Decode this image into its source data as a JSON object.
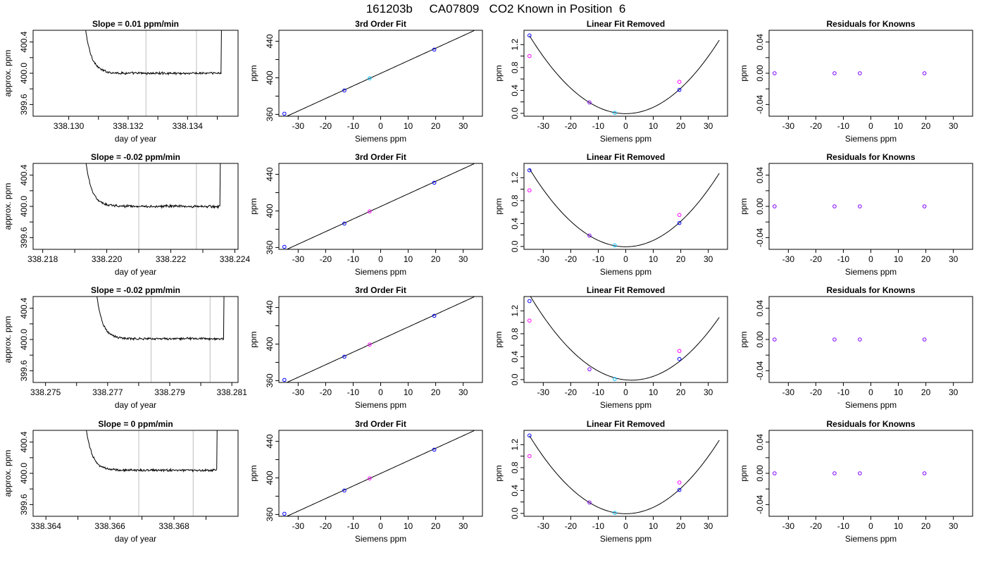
{
  "figure": {
    "title": "161203b     CA07809   CO2 Known in Position  6"
  },
  "colors": {
    "axis": "#000000",
    "trace": "#000000",
    "window_line": "#c8c8c8",
    "point_blue": "#0000ff",
    "point_magenta": "#ff00ff",
    "point_cyan": "#00bfff",
    "point_purple": "#8000ff"
  },
  "chart_data": [
    {
      "panel": "trace",
      "row": 1,
      "type": "line",
      "title": "Slope =  0.01  ppm/min",
      "xlabel": "day of year",
      "ylabel": "approx. ppm",
      "xlim": [
        338.1288,
        338.1357
      ],
      "ylim": [
        399.45,
        400.55
      ],
      "xticks": [
        338.13,
        338.131,
        338.132,
        338.133,
        338.134,
        338.135
      ],
      "xtick_labels": [
        "338.130",
        "",
        "338.132",
        "",
        "338.134",
        ""
      ],
      "yticks": [
        399.6,
        399.8,
        400.0,
        400.2,
        400.4
      ],
      "ytick_labels": [
        "399.6",
        "",
        "400.0",
        "",
        "400.4"
      ],
      "vlines": [
        338.1326,
        338.1343
      ],
      "trace": {
        "x_start": 338.1304,
        "x_end": 338.1352,
        "plateau": 400.0,
        "noise": 0.012,
        "slope": 0.01
      }
    },
    {
      "panel": "fit",
      "row": 1,
      "type": "line",
      "title": "3rd Order Fit",
      "xlabel": "Siemens ppm",
      "ylabel": "ppm",
      "xlim": [
        -37,
        37
      ],
      "ylim": [
        358,
        452
      ],
      "xticks": [
        -30,
        -20,
        -10,
        0,
        10,
        20,
        30
      ],
      "xtick_labels": [
        "-30",
        "-20",
        "-10",
        "0",
        "10",
        "20",
        "30"
      ],
      "yticks": [
        360,
        380,
        400,
        420,
        440
      ],
      "ytick_labels": [
        "360",
        "",
        "400",
        "",
        "440"
      ],
      "curve": {
        "slope": 1.375,
        "intercept": 404.9,
        "x_from": -35,
        "x_to": 34
      },
      "points": [
        {
          "x": -35,
          "y": 360.8,
          "color": "blue"
        },
        {
          "x": -13.2,
          "y": 386.2,
          "color": "blue"
        },
        {
          "x": -4,
          "y": 399.5,
          "color": "cyan"
        },
        {
          "x": 19.5,
          "y": 430.9,
          "color": "blue"
        }
      ]
    },
    {
      "panel": "removed",
      "row": 1,
      "type": "line",
      "title": "Linear Fit Removed",
      "xlabel": "Siemens ppm",
      "ylabel": "ppm",
      "xlim": [
        -37,
        37
      ],
      "ylim": [
        -0.05,
        1.45
      ],
      "xticks": [
        -30,
        -20,
        -10,
        0,
        10,
        20,
        30
      ],
      "xtick_labels": [
        "-30",
        "-20",
        "-10",
        "0",
        "10",
        "20",
        "30"
      ],
      "yticks": [
        0.0,
        0.2,
        0.4,
        0.6,
        0.8,
        1.0,
        1.2
      ],
      "ytick_labels": [
        "0.0",
        "",
        "0.4",
        "",
        "0.8",
        "",
        "1.2"
      ],
      "curve": {
        "a": 0.00111,
        "b": 0,
        "c": -0.005,
        "x_from": -35,
        "x_to": 34
      },
      "points": [
        {
          "x": -35,
          "y": 1.36,
          "color": "blue"
        },
        {
          "x": -35,
          "y": 1.0,
          "color": "magenta"
        },
        {
          "x": -13.2,
          "y": 0.19,
          "color": "purple"
        },
        {
          "x": -4,
          "y": 0.01,
          "color": "cyan"
        },
        {
          "x": 19.5,
          "y": 0.41,
          "color": "blue"
        },
        {
          "x": 19.5,
          "y": 0.55,
          "color": "magenta"
        }
      ]
    },
    {
      "panel": "residuals",
      "row": 1,
      "type": "scatter",
      "title": "Residuals for Knowns",
      "xlabel": "Siemens ppm",
      "ylabel": "ppm",
      "xlim": [
        -37,
        37
      ],
      "ylim": [
        -0.055,
        0.055
      ],
      "xticks": [
        -30,
        -20,
        -10,
        0,
        10,
        20,
        30
      ],
      "xtick_labels": [
        "-30",
        "-20",
        "-10",
        "0",
        "10",
        "20",
        "30"
      ],
      "yticks": [
        -0.04,
        -0.02,
        0.0,
        0.02,
        0.04
      ],
      "ytick_labels": [
        "-0.04",
        "",
        "0.00",
        "",
        "0.04"
      ],
      "points": [
        {
          "x": -35,
          "y": 0,
          "color": "purple"
        },
        {
          "x": -13.2,
          "y": 0,
          "color": "purple"
        },
        {
          "x": -4,
          "y": 0,
          "color": "purple"
        },
        {
          "x": 19.5,
          "y": 0,
          "color": "purple"
        }
      ]
    },
    {
      "panel": "trace",
      "row": 2,
      "type": "line",
      "title": "Slope =  -0.02  ppm/min",
      "xlabel": "day of year",
      "ylabel": "approx. ppm",
      "xlim": [
        338.2177,
        338.2241
      ],
      "ylim": [
        399.45,
        400.55
      ],
      "xticks": [
        338.218,
        338.219,
        338.22,
        338.221,
        338.222,
        338.223,
        338.224
      ],
      "xtick_labels": [
        "338.218",
        "",
        "338.220",
        "",
        "338.222",
        "",
        "338.224"
      ],
      "yticks": [
        399.6,
        399.8,
        400.0,
        400.2,
        400.4
      ],
      "ytick_labels": [
        "399.6",
        "",
        "400.0",
        "",
        "400.4"
      ],
      "vlines": [
        338.221,
        338.2228
      ],
      "trace": {
        "x_start": 338.2192,
        "x_end": 338.2236,
        "plateau": 400.0,
        "noise": 0.013,
        "slope": -0.02
      }
    },
    {
      "panel": "fit",
      "row": 2,
      "type": "line",
      "title": "3rd Order Fit",
      "xlabel": "Siemens ppm",
      "ylabel": "ppm",
      "xlim": [
        -37,
        37
      ],
      "ylim": [
        358,
        452
      ],
      "xticks": [
        -30,
        -20,
        -10,
        0,
        10,
        20,
        30
      ],
      "xtick_labels": [
        "-30",
        "-20",
        "-10",
        "0",
        "10",
        "20",
        "30"
      ],
      "yticks": [
        360,
        380,
        400,
        420,
        440
      ],
      "ytick_labels": [
        "360",
        "",
        "400",
        "",
        "440"
      ],
      "curve": {
        "slope": 1.375,
        "intercept": 404.9,
        "x_from": -35,
        "x_to": 34
      },
      "points": [
        {
          "x": -35,
          "y": 360.8,
          "color": "blue"
        },
        {
          "x": -13.2,
          "y": 386.2,
          "color": "blue"
        },
        {
          "x": -4,
          "y": 399.5,
          "color": "magenta"
        },
        {
          "x": 19.5,
          "y": 430.9,
          "color": "blue"
        }
      ]
    },
    {
      "panel": "removed",
      "row": 2,
      "type": "line",
      "title": "Linear Fit Removed",
      "xlabel": "Siemens ppm",
      "ylabel": "ppm",
      "xlim": [
        -37,
        37
      ],
      "ylim": [
        -0.05,
        1.45
      ],
      "xticks": [
        -30,
        -20,
        -10,
        0,
        10,
        20,
        30
      ],
      "xtick_labels": [
        "-30",
        "-20",
        "-10",
        "0",
        "10",
        "20",
        "30"
      ],
      "yticks": [
        0.0,
        0.2,
        0.4,
        0.6,
        0.8,
        1.0,
        1.2
      ],
      "ytick_labels": [
        "0.0",
        "",
        "0.4",
        "",
        "0.8",
        "",
        "1.2"
      ],
      "curve": {
        "a": 0.00111,
        "b": 0,
        "c": -0.005,
        "x_from": -35,
        "x_to": 34
      },
      "points": [
        {
          "x": -35,
          "y": 1.33,
          "color": "blue"
        },
        {
          "x": -35,
          "y": 0.98,
          "color": "magenta"
        },
        {
          "x": -13.2,
          "y": 0.19,
          "color": "purple"
        },
        {
          "x": -4,
          "y": 0.02,
          "color": "cyan"
        },
        {
          "x": 19.5,
          "y": 0.41,
          "color": "blue"
        },
        {
          "x": 19.5,
          "y": 0.55,
          "color": "magenta"
        }
      ]
    },
    {
      "panel": "residuals",
      "row": 2,
      "type": "scatter",
      "title": "Residuals for Knowns",
      "xlabel": "Siemens ppm",
      "ylabel": "ppm",
      "xlim": [
        -37,
        37
      ],
      "ylim": [
        -0.055,
        0.055
      ],
      "xticks": [
        -30,
        -20,
        -10,
        0,
        10,
        20,
        30
      ],
      "xtick_labels": [
        "-30",
        "-20",
        "-10",
        "0",
        "10",
        "20",
        "30"
      ],
      "yticks": [
        -0.04,
        -0.02,
        0.0,
        0.02,
        0.04
      ],
      "ytick_labels": [
        "-0.04",
        "",
        "0.00",
        "",
        "0.04"
      ],
      "points": [
        {
          "x": -35,
          "y": 0,
          "color": "purple"
        },
        {
          "x": -13.2,
          "y": 0,
          "color": "purple"
        },
        {
          "x": -4,
          "y": 0,
          "color": "purple"
        },
        {
          "x": 19.5,
          "y": 0,
          "color": "purple"
        }
      ]
    },
    {
      "panel": "trace",
      "row": 3,
      "type": "line",
      "title": "Slope =  -0.02  ppm/min",
      "xlabel": "day of year",
      "ylabel": "approx. ppm",
      "xlim": [
        338.2746,
        338.2812
      ],
      "ylim": [
        399.45,
        400.55
      ],
      "xticks": [
        338.275,
        338.276,
        338.277,
        338.278,
        338.279,
        338.28,
        338.281
      ],
      "xtick_labels": [
        "338.275",
        "",
        "338.277",
        "",
        "338.279",
        "",
        "338.281"
      ],
      "yticks": [
        399.6,
        399.8,
        400.0,
        400.2,
        400.4
      ],
      "ytick_labels": [
        "399.6",
        "",
        "400.0",
        "",
        "400.4"
      ],
      "vlines": [
        338.2784,
        338.2803
      ],
      "trace": {
        "x_start": 338.2765,
        "x_end": 338.2808,
        "plateau": 400.01,
        "noise": 0.012,
        "slope": -0.02
      }
    },
    {
      "panel": "fit",
      "row": 3,
      "type": "line",
      "title": "3rd Order Fit",
      "xlabel": "Siemens ppm",
      "ylabel": "ppm",
      "xlim": [
        -37,
        37
      ],
      "ylim": [
        358,
        452
      ],
      "xticks": [
        -30,
        -20,
        -10,
        0,
        10,
        20,
        30
      ],
      "xtick_labels": [
        "-30",
        "-20",
        "-10",
        "0",
        "10",
        "20",
        "30"
      ],
      "yticks": [
        360,
        380,
        400,
        420,
        440
      ],
      "ytick_labels": [
        "360",
        "",
        "400",
        "",
        "440"
      ],
      "curve": {
        "slope": 1.375,
        "intercept": 404.9,
        "x_from": -35,
        "x_to": 34
      },
      "points": [
        {
          "x": -35,
          "y": 360.8,
          "color": "blue"
        },
        {
          "x": -13.2,
          "y": 386.2,
          "color": "blue"
        },
        {
          "x": -4,
          "y": 399.5,
          "color": "magenta"
        },
        {
          "x": 19.5,
          "y": 430.9,
          "color": "blue"
        }
      ]
    },
    {
      "panel": "removed",
      "row": 3,
      "type": "line",
      "title": "Linear Fit Removed",
      "xlabel": "Siemens ppm",
      "ylabel": "ppm",
      "xlim": [
        -37,
        37
      ],
      "ylim": [
        -0.05,
        1.45
      ],
      "xticks": [
        -30,
        -20,
        -10,
        0,
        10,
        20,
        30
      ],
      "xtick_labels": [
        "-30",
        "-20",
        "-10",
        "0",
        "10",
        "20",
        "30"
      ],
      "yticks": [
        0.0,
        0.2,
        0.4,
        0.6,
        0.8,
        1.0,
        1.2
      ],
      "ytick_labels": [
        "0.0",
        "",
        "0.4",
        "",
        "0.8",
        "",
        "1.2"
      ],
      "curve": {
        "a": 0.00108,
        "b": -0.0046,
        "c": -0.005,
        "x_from": -35,
        "x_to": 34
      },
      "points": [
        {
          "x": -35,
          "y": 1.37,
          "color": "blue"
        },
        {
          "x": -35,
          "y": 1.03,
          "color": "magenta"
        },
        {
          "x": -13.2,
          "y": 0.18,
          "color": "purple"
        },
        {
          "x": -4,
          "y": 0.01,
          "color": "cyan"
        },
        {
          "x": 19.5,
          "y": 0.36,
          "color": "blue"
        },
        {
          "x": 19.5,
          "y": 0.5,
          "color": "magenta"
        }
      ]
    },
    {
      "panel": "residuals",
      "row": 3,
      "type": "scatter",
      "title": "Residuals for Knowns",
      "xlabel": "Siemens ppm",
      "ylabel": "ppm",
      "xlim": [
        -37,
        37
      ],
      "ylim": [
        -0.055,
        0.055
      ],
      "xticks": [
        -30,
        -20,
        -10,
        0,
        10,
        20,
        30
      ],
      "xtick_labels": [
        "-30",
        "-20",
        "-10",
        "0",
        "10",
        "20",
        "30"
      ],
      "yticks": [
        -0.04,
        -0.02,
        0.0,
        0.02,
        0.04
      ],
      "ytick_labels": [
        "-0.04",
        "",
        "0.00",
        "",
        "0.04"
      ],
      "points": [
        {
          "x": -35,
          "y": 0,
          "color": "purple"
        },
        {
          "x": -13.2,
          "y": 0,
          "color": "purple"
        },
        {
          "x": -4,
          "y": 0,
          "color": "purple"
        },
        {
          "x": 19.5,
          "y": 0,
          "color": "purple"
        }
      ]
    },
    {
      "panel": "trace",
      "row": 4,
      "type": "line",
      "title": "Slope =  0  ppm/min",
      "xlabel": "day of year",
      "ylabel": "approx. ppm",
      "xlim": [
        338.3636,
        338.37
      ],
      "ylim": [
        399.45,
        400.55
      ],
      "xticks": [
        338.364,
        338.365,
        338.366,
        338.367,
        338.368,
        338.369
      ],
      "xtick_labels": [
        "338.364",
        "",
        "338.366",
        "",
        "338.368",
        ""
      ],
      "yticks": [
        399.6,
        399.8,
        400.0,
        400.2,
        400.4
      ],
      "ytick_labels": [
        "399.6",
        "",
        "400.0",
        "",
        "400.4"
      ],
      "vlines": [
        338.3669,
        338.3686
      ],
      "trace": {
        "x_start": 338.3651,
        "x_end": 338.3694,
        "plateau": 400.04,
        "noise": 0.012,
        "slope": 0
      }
    },
    {
      "panel": "fit",
      "row": 4,
      "type": "line",
      "title": "3rd Order Fit",
      "xlabel": "Siemens ppm",
      "ylabel": "ppm",
      "xlim": [
        -37,
        37
      ],
      "ylim": [
        358,
        452
      ],
      "xticks": [
        -30,
        -20,
        -10,
        0,
        10,
        20,
        30
      ],
      "xtick_labels": [
        "-30",
        "-20",
        "-10",
        "0",
        "10",
        "20",
        "30"
      ],
      "yticks": [
        360,
        380,
        400,
        420,
        440
      ],
      "ytick_labels": [
        "360",
        "",
        "400",
        "",
        "440"
      ],
      "curve": {
        "slope": 1.375,
        "intercept": 404.9,
        "x_from": -35,
        "x_to": 34
      },
      "points": [
        {
          "x": -35,
          "y": 360.8,
          "color": "blue"
        },
        {
          "x": -13.2,
          "y": 386.2,
          "color": "blue"
        },
        {
          "x": -4,
          "y": 399.5,
          "color": "magenta"
        },
        {
          "x": 19.5,
          "y": 430.9,
          "color": "blue"
        }
      ]
    },
    {
      "panel": "removed",
      "row": 4,
      "type": "line",
      "title": "Linear Fit Removed",
      "xlabel": "Siemens ppm",
      "ylabel": "ppm",
      "xlim": [
        -37,
        37
      ],
      "ylim": [
        -0.05,
        1.45
      ],
      "xticks": [
        -30,
        -20,
        -10,
        0,
        10,
        20,
        30
      ],
      "xtick_labels": [
        "-30",
        "-20",
        "-10",
        "0",
        "10",
        "20",
        "30"
      ],
      "yticks": [
        0.0,
        0.2,
        0.4,
        0.6,
        0.8,
        1.0,
        1.2
      ],
      "ytick_labels": [
        "0.0",
        "",
        "0.4",
        "",
        "0.8",
        "",
        "1.2"
      ],
      "curve": {
        "a": 0.00111,
        "b": 0,
        "c": -0.005,
        "x_from": -35,
        "x_to": 34
      },
      "points": [
        {
          "x": -35,
          "y": 1.36,
          "color": "blue"
        },
        {
          "x": -35,
          "y": 1.0,
          "color": "magenta"
        },
        {
          "x": -13.2,
          "y": 0.19,
          "color": "purple"
        },
        {
          "x": -4,
          "y": 0.01,
          "color": "cyan"
        },
        {
          "x": 19.5,
          "y": 0.41,
          "color": "blue"
        },
        {
          "x": 19.5,
          "y": 0.54,
          "color": "magenta"
        }
      ]
    },
    {
      "panel": "residuals",
      "row": 4,
      "type": "scatter",
      "title": "Residuals for Knowns",
      "xlabel": "Siemens ppm",
      "ylabel": "ppm",
      "xlim": [
        -37,
        37
      ],
      "ylim": [
        -0.055,
        0.055
      ],
      "xticks": [
        -30,
        -20,
        -10,
        0,
        10,
        20,
        30
      ],
      "xtick_labels": [
        "-30",
        "-20",
        "-10",
        "0",
        "10",
        "20",
        "30"
      ],
      "yticks": [
        -0.04,
        -0.02,
        0.0,
        0.02,
        0.04
      ],
      "ytick_labels": [
        "-0.04",
        "",
        "0.00",
        "",
        "0.04"
      ],
      "points": [
        {
          "x": -35,
          "y": 0,
          "color": "purple"
        },
        {
          "x": -13.2,
          "y": 0,
          "color": "purple"
        },
        {
          "x": -4,
          "y": 0,
          "color": "purple"
        },
        {
          "x": 19.5,
          "y": 0,
          "color": "purple"
        }
      ]
    }
  ]
}
